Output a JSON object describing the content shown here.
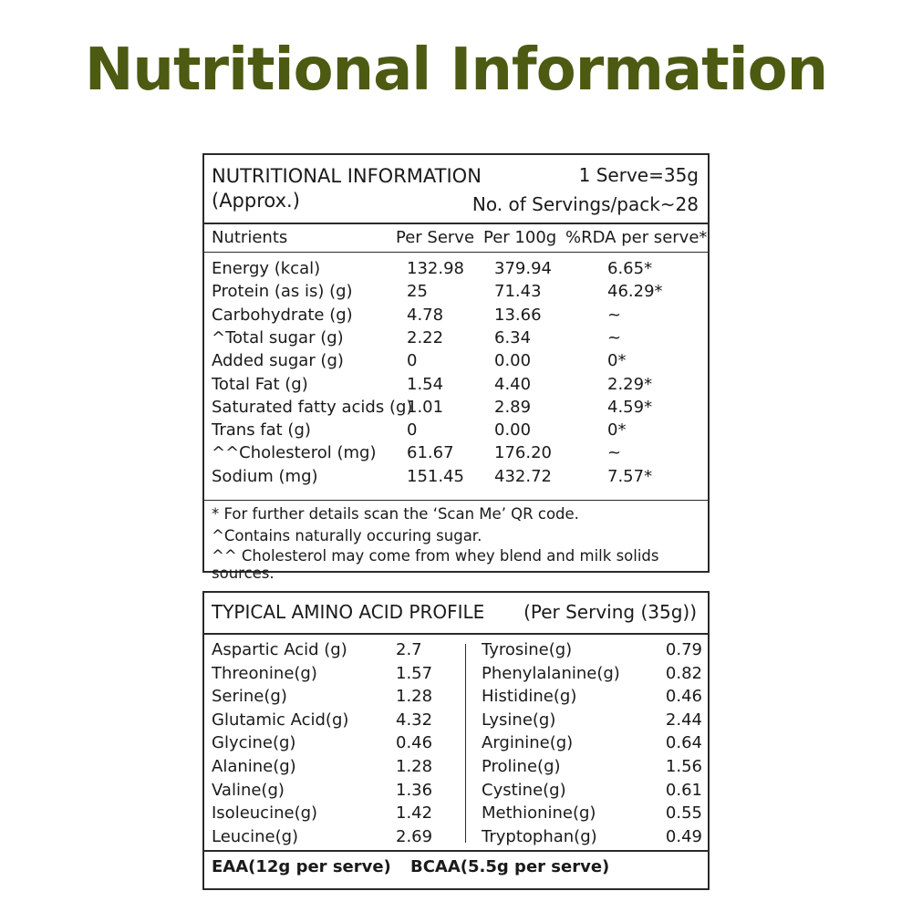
{
  "page_title": "Nutritional Information",
  "nutrition": {
    "title": "NUTRITIONAL INFORMATION",
    "approx": "(Approx.)",
    "serve_size": "1 Serve=35g",
    "servings": "No. of Servings/pack~28",
    "headers": {
      "nutrients": "Nutrients",
      "per_serve": "Per Serve",
      "per_100g": "Per 100g",
      "rda": "%RDA per serve*"
    },
    "rows": [
      {
        "name": "Energy (kcal)",
        "per_serve": "132.98",
        "per_100g": "379.94",
        "rda": "6.65*"
      },
      {
        "name": "Protein (as is) (g)",
        "per_serve": "25",
        "per_100g": "71.43",
        "rda": "46.29*"
      },
      {
        "name": "Carbohydrate (g)",
        "per_serve": "4.78",
        "per_100g": "13.66",
        "rda": "~"
      },
      {
        "name": "^Total sugar (g)",
        "per_serve": "2.22",
        "per_100g": "6.34",
        "rda": "~"
      },
      {
        "name": "Added sugar (g)",
        "per_serve": "0",
        "per_100g": "0.00",
        "rda": "0*"
      },
      {
        "name": "Total Fat (g)",
        "per_serve": "1.54",
        "per_100g": "4.40",
        "rda": "2.29*"
      },
      {
        "name": "Saturated fatty acids (g)",
        "per_serve": "1.01",
        "per_100g": "2.89",
        "rda": "4.59*"
      },
      {
        "name": "Trans fat (g)",
        "per_serve": "0",
        "per_100g": "0.00",
        "rda": "0*"
      },
      {
        "name": "^^Cholesterol (mg)",
        "per_serve": "61.67",
        "per_100g": "176.20",
        "rda": "~"
      },
      {
        "name": "Sodium (mg)",
        "per_serve": "151.45",
        "per_100g": "432.72",
        "rda": "7.57*"
      }
    ],
    "footnotes": [
      "* For further details scan the ‘Scan Me’ QR code.",
      "^Contains naturally occuring sugar.",
      "^^ Cholesterol may come from whey blend and milk solids sources."
    ]
  },
  "amino": {
    "title": "TYPICAL AMINO ACID PROFILE",
    "subtitle": "(Per Serving (35g))",
    "left": [
      {
        "name": "Aspartic Acid (g)",
        "value": "2.7"
      },
      {
        "name": "Threonine(g)",
        "value": "1.57"
      },
      {
        "name": "Serine(g)",
        "value": "1.28"
      },
      {
        "name": "Glutamic Acid(g)",
        "value": "4.32"
      },
      {
        "name": "Glycine(g)",
        "value": "0.46"
      },
      {
        "name": "Alanine(g)",
        "value": "1.28"
      },
      {
        "name": "Valine(g)",
        "value": "1.36"
      },
      {
        "name": "Isoleucine(g)",
        "value": "1.42"
      },
      {
        "name": "Leucine(g)",
        "value": "2.69"
      }
    ],
    "right": [
      {
        "name": "Tyrosine(g)",
        "value": "0.79"
      },
      {
        "name": "Phenylalanine(g)",
        "value": "0.82"
      },
      {
        "name": "Histidine(g)",
        "value": "0.46"
      },
      {
        "name": "Lysine(g)",
        "value": "2.44"
      },
      {
        "name": "Arginine(g)",
        "value": "0.64"
      },
      {
        "name": "Proline(g)",
        "value": "1.56"
      },
      {
        "name": "Cystine(g)",
        "value": "0.61"
      },
      {
        "name": "Methionine(g)",
        "value": "0.55"
      },
      {
        "name": "Tryptophan(g)",
        "value": "0.49"
      }
    ],
    "eaa": "EAA(12g per serve)",
    "bcaa": "BCAA(5.5g per serve)"
  },
  "colors": {
    "title": "#4c5a12",
    "border": "#2a2a2a",
    "text": "#1a1a1a"
  }
}
